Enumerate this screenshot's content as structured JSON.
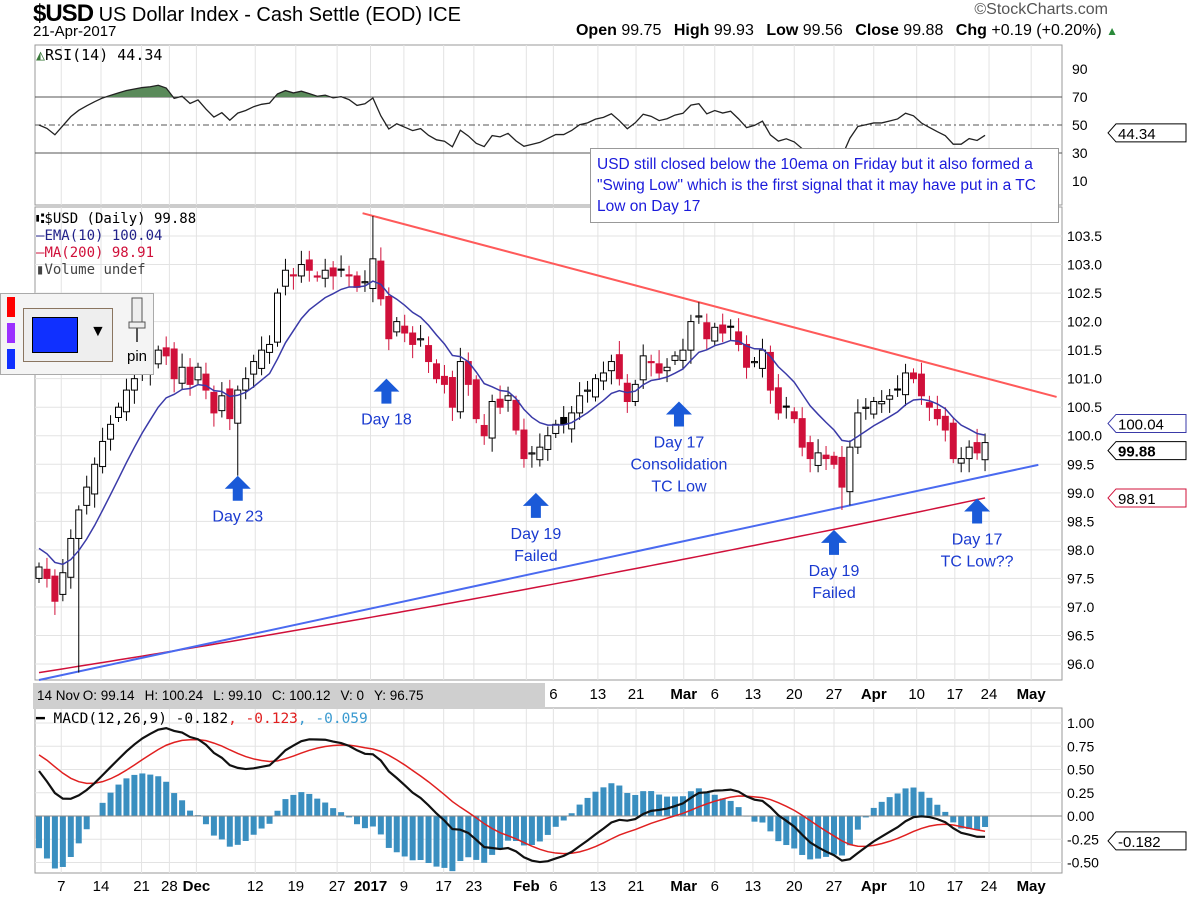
{
  "header": {
    "symbol": "$USD",
    "name": "US Dollar Index - Cash Settle (EOD)",
    "exchange": "ICE",
    "date": "21-Apr-2017",
    "brand": "©StockCharts.com",
    "open_label": "Open",
    "open": "99.75",
    "high_label": "High",
    "high": "99.93",
    "low_label": "Low",
    "low": "99.56",
    "close_label": "Close",
    "close": "99.88",
    "chg_label": "Chg",
    "chg": "+0.19 (+0.20%)",
    "chg_icon": "up-triangle-icon"
  },
  "rsi_legend": "RSI(14) 44.34",
  "price_legend": {
    "main": "$USD (Daily) 99.88",
    "ema": "EMA(10) 100.04",
    "ma": "MA(200) 98.91",
    "volume": "Volume undef"
  },
  "palette": {
    "pin_label": "pin",
    "colors": [
      "#ff0000",
      "#9b30ff",
      "#1030ff"
    ],
    "selected": "#1030ff"
  },
  "note": "USD still closed below the 10ema on Friday but it also formed a \"Swing Low\" which is the first signal that it may have put in a TC Low on Day 17",
  "infobar": {
    "date": "14 Nov",
    "o": "O: 99.14",
    "h": "H: 100.24",
    "l": "L: 99.10",
    "c": "C: 100.12",
    "v": "V: 0",
    "y": "Y: 96.75"
  },
  "macd_legend": {
    "main": "MACD(12,26,9) -0.182",
    "signal": ", -0.123",
    "hist": ", -0.059"
  },
  "tags": {
    "ema": "100.04",
    "close": "99.88",
    "ma": "98.91",
    "rsi": "44.34",
    "macd": "-0.182"
  },
  "colors": {
    "up": "#000000",
    "down": "#d0103a",
    "ema": "#3a3aa8",
    "ma": "#d0103a",
    "trend_res": "#ff5a5a",
    "trend_sup": "#4a6af0",
    "arrow": "#1a5ad8",
    "hist": "#3a8fc0"
  },
  "chart_data": {
    "type": "candlestick",
    "title": "$USD US Dollar Index - Cash Settle (EOD)",
    "closes": [
      97.7,
      97.5,
      97.1,
      97.6,
      98.2,
      98.7,
      99.1,
      99.5,
      99.9,
      100.2,
      100.5,
      100.8,
      101.0,
      101.2,
      101.3,
      101.5,
      101.4,
      101.0,
      101.2,
      100.9,
      101.2,
      100.8,
      100.4,
      100.7,
      100.3,
      100.8,
      101.0,
      101.3,
      101.5,
      101.6,
      102.5,
      102.9,
      102.8,
      103.0,
      102.9,
      102.8,
      102.9,
      102.8,
      102.9,
      102.8,
      102.6,
      102.7,
      103.1,
      102.4,
      101.7,
      102.0,
      101.8,
      101.6,
      101.7,
      101.3,
      101.0,
      100.9,
      100.5,
      101.3,
      100.9,
      100.3,
      100.0,
      100.6,
      100.5,
      100.7,
      100.1,
      99.6,
      99.7,
      99.8,
      100.0,
      100.2,
      100.2,
      100.4,
      100.7,
      100.8,
      101.0,
      101.1,
      101.3,
      101.0,
      100.6,
      100.9,
      101.4,
      101.3,
      101.1,
      101.2,
      101.4,
      101.5,
      102.0,
      102.1,
      101.7,
      101.9,
      101.8,
      101.9,
      101.6,
      101.2,
      101.3,
      101.5,
      100.8,
      100.4,
      100.5,
      100.3,
      99.8,
      99.6,
      99.7,
      99.6,
      99.5,
      99.1,
      99.8,
      100.4,
      100.5,
      100.6,
      100.6,
      100.7,
      100.8,
      101.1,
      101.0,
      100.7,
      100.5,
      100.3,
      100.1,
      99.6,
      99.6,
      99.8,
      99.7,
      99.88
    ],
    "wick_extremes": [
      {
        "i": 5,
        "low": 95.85
      },
      {
        "i": 25,
        "low": 99.3
      },
      {
        "i": 42,
        "high": 103.85
      },
      {
        "i": 101,
        "low": 98.7
      }
    ],
    "ema_period": 10,
    "ema_seed": 98.1,
    "ma200_range": [
      95.85,
      98.91
    ],
    "price_ylim": [
      95.75,
      103.9
    ],
    "price_ticks": [
      "103.5",
      "103.0",
      "102.5",
      "102.0",
      "101.5",
      "101.0",
      "100.5",
      "100.0",
      "99.5",
      "99.0",
      "98.5",
      "98.0",
      "97.5",
      "97.0",
      "96.5",
      "96.0"
    ],
    "rsi_ticks": [
      "90",
      "70",
      "50",
      "30",
      "10"
    ],
    "macd_ticks": [
      "1.00",
      "0.75",
      "0.50",
      "0.25",
      "0.00",
      "-0.25",
      "-0.50"
    ],
    "macd_params": [
      12,
      26,
      9
    ],
    "macd_seed": {
      "ema12": 98.6,
      "ema26": 98.0,
      "signal": 0.7
    },
    "trendlines": [
      {
        "name": "resistance",
        "from": [
          40.7,
          103.9
        ],
        "to": [
          128,
          100.68
        ]
      },
      {
        "name": "support",
        "from": [
          0,
          95.72
        ],
        "to": [
          125.7,
          99.49
        ]
      }
    ],
    "annotations": [
      {
        "i": 25,
        "arrow_price": 99.3,
        "lines": [
          "Day 23"
        ]
      },
      {
        "i": 43.7,
        "arrow_price": 101.0,
        "lines": [
          "Day 18"
        ]
      },
      {
        "i": 62.5,
        "arrow_price": 99.0,
        "lines": [
          "Day 19",
          "Failed"
        ]
      },
      {
        "i": 80.5,
        "arrow_price": 100.6,
        "lines": [
          "Day 17",
          "Consolidation",
          "TC Low"
        ]
      },
      {
        "i": 100,
        "arrow_price": 98.35,
        "lines": [
          "Day 19",
          "Failed"
        ]
      },
      {
        "i": 118,
        "arrow_price": 98.9,
        "lines": [
          "Day 17",
          "TC Low??"
        ]
      }
    ],
    "x_ticks": [
      {
        "l": "7",
        "i": 2.8
      },
      {
        "l": "14",
        "i": 7.8
      },
      {
        "l": "21",
        "i": 12.9
      },
      {
        "l": "28",
        "i": 16.4
      },
      {
        "l": "Dec",
        "i": 19.8,
        "b": 1
      },
      {
        "l": "12",
        "i": 27.2
      },
      {
        "l": "19",
        "i": 32.3
      },
      {
        "l": "27",
        "i": 37.5
      },
      {
        "l": "2017",
        "i": 41.7,
        "b": 1
      },
      {
        "l": "9",
        "i": 45.9
      },
      {
        "l": "17",
        "i": 50.9
      },
      {
        "l": "23",
        "i": 54.7
      },
      {
        "l": "Feb",
        "i": 61.3,
        "b": 1
      },
      {
        "l": "6",
        "i": 64.7
      },
      {
        "l": "13",
        "i": 70.3
      },
      {
        "l": "21",
        "i": 75.1
      },
      {
        "l": "Mar",
        "i": 81.1,
        "b": 1
      },
      {
        "l": "6",
        "i": 85
      },
      {
        "l": "13",
        "i": 89.8
      },
      {
        "l": "20",
        "i": 95
      },
      {
        "l": "27",
        "i": 100
      },
      {
        "l": "Apr",
        "i": 105,
        "b": 1
      },
      {
        "l": "10",
        "i": 110.4
      },
      {
        "l": "17",
        "i": 115.2
      },
      {
        "l": "24",
        "i": 119.5
      },
      {
        "l": "May",
        "i": 124.8,
        "b": 1
      }
    ]
  }
}
